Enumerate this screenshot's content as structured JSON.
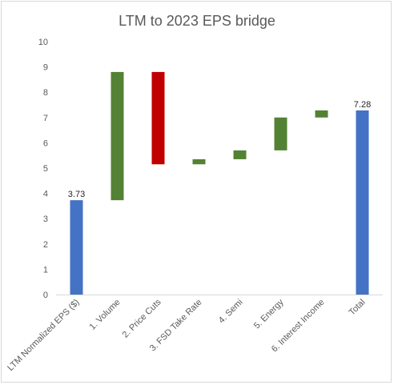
{
  "chart_data": {
    "type": "bar",
    "title": "LTM to 2023 EPS bridge",
    "categories": [
      "LTM Normalized EPS ($)",
      "1. Volume",
      "2. Price Cuts",
      "3. FSD Take Rate",
      "4. Semi",
      "5. Energy",
      "6. Interest Income",
      "Total"
    ],
    "bars": [
      {
        "start": 0,
        "end": 3.73,
        "color": "#4472c4",
        "label": "3.73"
      },
      {
        "start": 3.73,
        "end": 8.8,
        "color": "#548235",
        "label": ""
      },
      {
        "start": 8.8,
        "end": 5.15,
        "color": "#c00000",
        "label": ""
      },
      {
        "start": 5.15,
        "end": 5.35,
        "color": "#548235",
        "label": ""
      },
      {
        "start": 5.35,
        "end": 5.7,
        "color": "#548235",
        "label": ""
      },
      {
        "start": 5.7,
        "end": 7.0,
        "color": "#548235",
        "label": ""
      },
      {
        "start": 7.0,
        "end": 7.28,
        "color": "#548235",
        "label": ""
      },
      {
        "start": 0,
        "end": 7.28,
        "color": "#4472c4",
        "label": "7.28"
      }
    ],
    "ylim": [
      0,
      10
    ],
    "yticks": [
      "0",
      "1",
      "2",
      "3",
      "4",
      "5",
      "6",
      "7",
      "8",
      "9",
      "10"
    ],
    "grid": false,
    "legend": "none"
  }
}
